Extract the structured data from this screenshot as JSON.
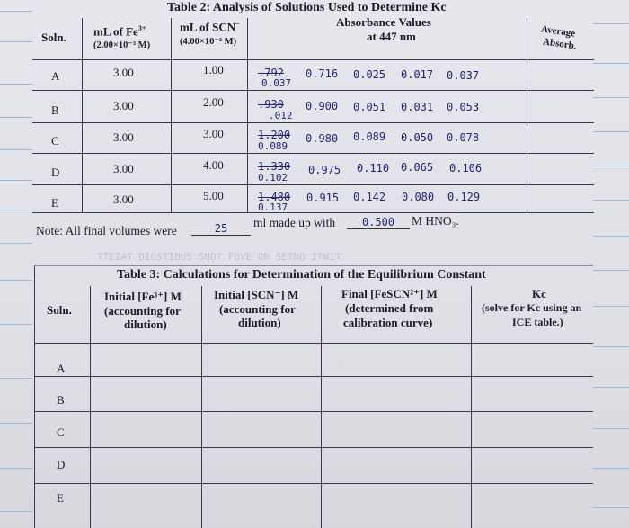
{
  "table2": {
    "title": "Table 2: Analysis of Solutions Used to Determine Kc",
    "headers": {
      "soln": "Soln.",
      "fe": "mL of Fe",
      "fe_sup": "3+",
      "fe_conc": "(2.00×10⁻³ M)",
      "scn": "mL of SCN",
      "scn_sup": "−",
      "scn_conc": "(4.00×10⁻³ M)",
      "absorbance_1": "Absorbance Values",
      "absorbance_2": "at 447 nm",
      "average_1": "Average",
      "average_2": "Absorb."
    },
    "rows": [
      {
        "soln": "A",
        "fe": "3.00",
        "scn": "1.00",
        "a1_struck": ".792",
        "a1": "0.037",
        "a2": "0.716",
        "a3": "0.025",
        "a4": "0.017",
        "a5": "0.037"
      },
      {
        "soln": "B",
        "fe": "3.00",
        "scn": "2.00",
        "a1_struck": ".930",
        "a1": ".012",
        "a2": "0.900",
        "a3": "0.051",
        "a4": "0.031",
        "a5": "0.053"
      },
      {
        "soln": "C",
        "fe": "3.00",
        "scn": "3.00",
        "a1_struck": "1.200",
        "a1": "0.089",
        "a2": "0.980",
        "a3": "0.089",
        "a4": "0.050",
        "a5": "0.078"
      },
      {
        "soln": "D",
        "fe": "3.00",
        "scn": "4.00",
        "a1_struck": "1.330",
        "a1": "0.102",
        "a2": "0.975",
        "a3": "0.110",
        "a4": "0.065",
        "a5": "0.106"
      },
      {
        "soln": "E",
        "fe": "3.00",
        "scn": "5.00",
        "a1_struck": "1.480",
        "a1": "0.137",
        "a2": "0.915",
        "a3": "0.142",
        "a4": "0.080",
        "a5": "0.129"
      }
    ],
    "note_1": "Note: All final volumes were",
    "note_volume": "25",
    "note_2": "ml made up with",
    "note_molarity": "0.500",
    "note_3": "M HNO₃."
  },
  "bleed_text": "TTEIAT DIOSTIBUS SNOT FOVE ON SETNO ITWIT",
  "table3": {
    "title": "Table 3: Calculations for Determination of the Equilibrium Constant",
    "headers": {
      "soln": "Soln.",
      "fe_1": "Initial [Fe³⁺] M",
      "fe_2": "(accounting for",
      "fe_3": "dilution)",
      "scn_1": "Initial [SCN⁻] M",
      "scn_2": "(accounting for",
      "scn_3": "dilution)",
      "fescn_1": "Final [FeSCN²⁺] M",
      "fescn_2": "(determined from",
      "fescn_3": "calibration curve)",
      "kc_1": "Kc",
      "kc_2": "(solve for Kc using an",
      "kc_3": "ICE table.)"
    },
    "rows": [
      "A",
      "B",
      "C",
      "D",
      "E"
    ]
  }
}
